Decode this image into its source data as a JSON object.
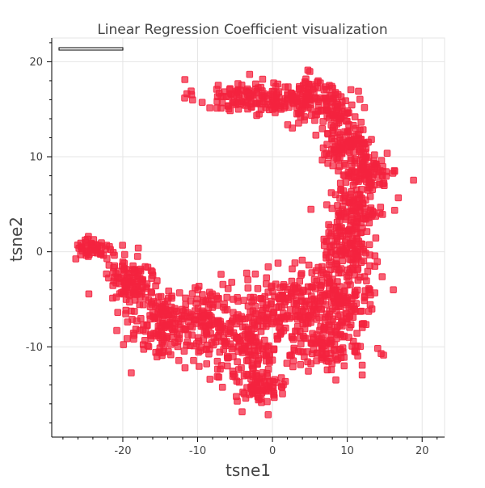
{
  "chart_data": {
    "type": "scatter",
    "title": "Linear Regression Coefficient visualization",
    "xlabel": "tsne1",
    "ylabel": "tsne2",
    "xlim": [
      -29.5,
      23
    ],
    "ylim": [
      -19.5,
      22.5
    ],
    "x_ticks": [
      -20,
      -10,
      0,
      10,
      20
    ],
    "y_ticks": [
      -10,
      0,
      10,
      20
    ],
    "grid": true,
    "legend": "top-left",
    "marker": "square",
    "marker_color": "#f4233f",
    "clusters": [
      {
        "cx": -3,
        "cy": 16.3,
        "sx": 5,
        "sy": 1.3,
        "n": 140
      },
      {
        "cx": 5,
        "cy": 16.0,
        "sx": 2.8,
        "sy": 1.6,
        "n": 110
      },
      {
        "cx": 9,
        "cy": 14.8,
        "sx": 1.8,
        "sy": 1.6,
        "n": 60
      },
      {
        "cx": 10,
        "cy": 11.5,
        "sx": 2.4,
        "sy": 1.4,
        "n": 90
      },
      {
        "cx": 12.5,
        "cy": 8.5,
        "sx": 3,
        "sy": 1.5,
        "n": 110
      },
      {
        "cx": 11,
        "cy": 4.5,
        "sx": 2.8,
        "sy": 1.6,
        "n": 100
      },
      {
        "cx": 10,
        "cy": 0.5,
        "sx": 2.4,
        "sy": 1.8,
        "n": 110
      },
      {
        "cx": 9,
        "cy": -4.5,
        "sx": 3.5,
        "sy": 2.5,
        "n": 170
      },
      {
        "cx": 7.5,
        "cy": -10,
        "sx": 3.5,
        "sy": 1.8,
        "n": 120
      },
      {
        "cx": 2.5,
        "cy": -6,
        "sx": 3,
        "sy": 3,
        "n": 150
      },
      {
        "cx": -3,
        "cy": -9,
        "sx": 3,
        "sy": 3.6,
        "n": 170
      },
      {
        "cx": -1.5,
        "cy": -14.5,
        "sx": 2.3,
        "sy": 1.2,
        "n": 70
      },
      {
        "cx": -9,
        "cy": -7.5,
        "sx": 3.5,
        "sy": 2.6,
        "n": 150
      },
      {
        "cx": -15,
        "cy": -7.5,
        "sx": 3,
        "sy": 2.4,
        "n": 140
      },
      {
        "cx": -19,
        "cy": -3,
        "sx": 2.4,
        "sy": 2,
        "n": 110
      },
      {
        "cx": -24,
        "cy": 0.3,
        "sx": 1.6,
        "sy": 0.9,
        "n": 50
      }
    ]
  }
}
